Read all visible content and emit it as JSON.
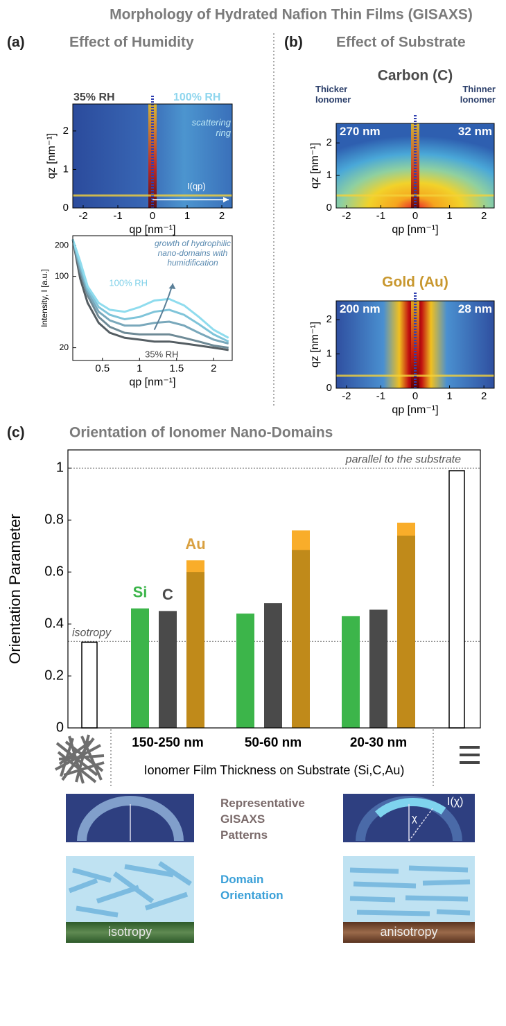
{
  "title": "Morphology of Hydrated Nafion Thin Films (GISAXS)",
  "panels": {
    "a": {
      "label": "(a)",
      "title": "Effect of Humidity"
    },
    "b": {
      "label": "(b)",
      "title": "Effect of Substrate"
    },
    "c": {
      "label": "(c)"
    }
  },
  "chart_data": [
    {
      "type": "heatmap",
      "xlabel": "qp [nm⁻¹]",
      "ylabel": "qz [nm⁻¹]",
      "xlim": [
        -2.3,
        2.3
      ],
      "ylim": [
        0,
        2.7
      ],
      "xticks": [
        -2,
        -1,
        0,
        1,
        2
      ],
      "yticks": [
        0,
        1,
        2
      ],
      "annotations": [
        "35% RH",
        "100% RH",
        "scattering ring",
        "I(qp)"
      ]
    },
    {
      "type": "line",
      "xlabel": "qp [nm⁻¹]",
      "ylabel": "Intensity, I [a.u.]",
      "log_y": true,
      "xlim": [
        0.1,
        2.25
      ],
      "ylim": [
        15,
        250
      ],
      "xticks": [
        0.5,
        1,
        1.5,
        2
      ],
      "yticks": [
        20,
        100,
        200
      ],
      "annotation": "growth of hydrophilic nano-domains with humidification",
      "x": [
        0.1,
        0.2,
        0.3,
        0.45,
        0.6,
        0.8,
        1.0,
        1.2,
        1.4,
        1.6,
        1.8,
        2.0,
        2.2
      ],
      "series": [
        {
          "name": "35% RH",
          "color": "#555e63",
          "values": [
            230,
            95,
            55,
            35,
            28,
            25,
            24,
            23,
            23,
            22,
            21,
            20,
            19
          ]
        },
        {
          "color": "#6e8a96",
          "values": [
            230,
            110,
            65,
            40,
            32,
            28,
            27,
            27,
            27,
            25,
            23,
            21,
            20
          ]
        },
        {
          "color": "#79a8bb",
          "values": [
            230,
            120,
            70,
            45,
            37,
            33,
            33,
            35,
            36,
            33,
            28,
            24,
            22
          ]
        },
        {
          "color": "#7fc4d9",
          "values": [
            230,
            130,
            75,
            50,
            42,
            38,
            40,
            45,
            47,
            42,
            34,
            27,
            23
          ]
        },
        {
          "name": "100% RH",
          "color": "#8fdcee",
          "values": [
            230,
            140,
            80,
            55,
            47,
            45,
            50,
            58,
            60,
            52,
            40,
            30,
            25
          ]
        }
      ]
    },
    {
      "type": "heatmap",
      "title": "Carbon (C)",
      "title_color": "#4a4a4a",
      "xlabel": "qp [nm⁻¹]",
      "ylabel": "qz [nm⁻¹]",
      "xlim": [
        -2.3,
        2.3
      ],
      "ylim": [
        0,
        2.6
      ],
      "xticks": [
        -2,
        -1,
        0,
        1,
        2
      ],
      "yticks": [
        0,
        1,
        2
      ],
      "annotations": [
        "Thicker Ionomer",
        "Thinner Ionomer",
        "270 nm",
        "32 nm"
      ]
    },
    {
      "type": "heatmap",
      "title": "Gold (Au)",
      "title_color": "#c8972e",
      "xlabel": "qp [nm⁻¹]",
      "ylabel": "qz [nm⁻¹]",
      "xlim": [
        -2.3,
        2.3
      ],
      "ylim": [
        0,
        2.55
      ],
      "xticks": [
        -2,
        -1,
        0,
        1,
        2
      ],
      "yticks": [
        0,
        1,
        2
      ],
      "annotations": [
        "200 nm",
        "28 nm"
      ]
    },
    {
      "type": "bar",
      "title": "Orientation of Ionomer Nano-Domains",
      "ylabel": "Orientation Parameter",
      "xlabel": "Ionomer Film Thickness on Substrate (Si,C,Au)",
      "categories": [
        "150-250 nm",
        "50-60 nm",
        "20-30 nm"
      ],
      "ylim": [
        0,
        1.07
      ],
      "yticks": [
        0,
        0.2,
        0.4,
        0.6,
        0.8,
        1
      ],
      "series": [
        {
          "name": "Si",
          "color": "#3cb54a",
          "values": [
            0.46,
            0.44,
            0.43
          ]
        },
        {
          "name": "C",
          "color": "#4a4a4a",
          "values": [
            0.45,
            0.48,
            0.455
          ]
        },
        {
          "name": "Au",
          "color": "#f9ad2a",
          "values": [
            0.645,
            0.76,
            0.79
          ]
        },
        {
          "color": "#c08a1a",
          "values": [
            0.6,
            0.685,
            0.74
          ]
        }
      ],
      "references": [
        {
          "label": "isotropy",
          "value": 0.333,
          "bar": 0.33
        },
        {
          "label": "parallel to the substrate",
          "value": 1,
          "bar": 0.99
        }
      ]
    }
  ],
  "schematic": {
    "patterns_label": "Representative GISAXS Patterns",
    "orientation_label": "Domain Orientation",
    "isotropy": "isotropy",
    "anisotropy": "anisotropy",
    "intensity_label": "I(χ)",
    "angle_label": "χ"
  }
}
